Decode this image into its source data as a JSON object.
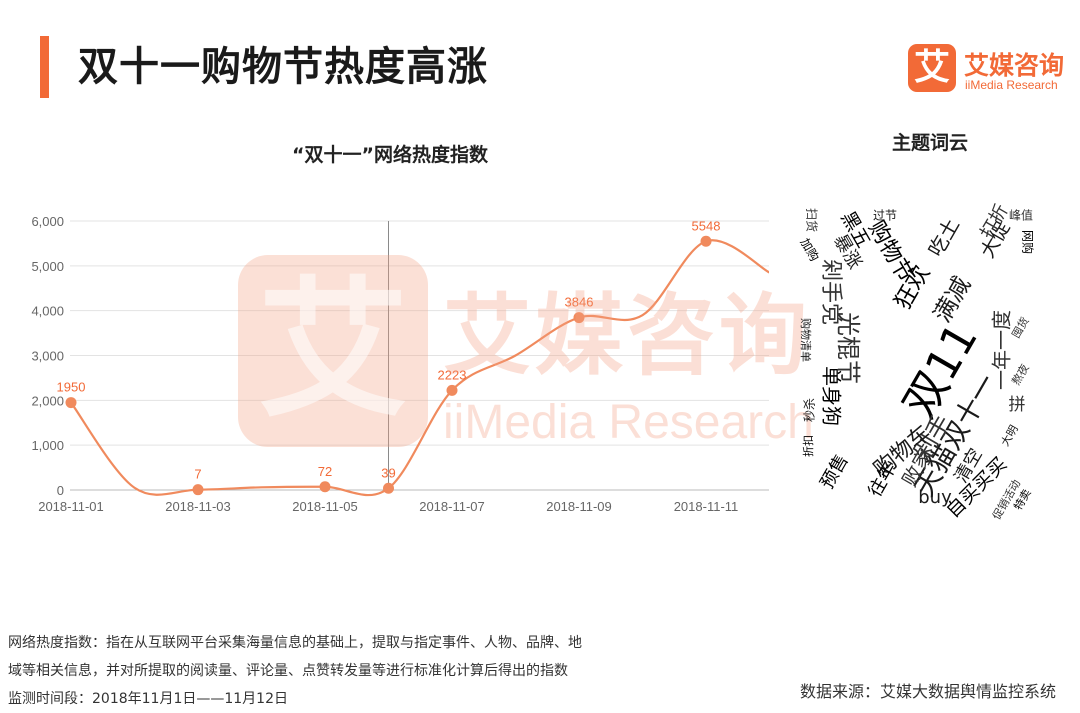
{
  "header": {
    "title": "双十一购物节热度高涨",
    "accent_color": "#f26a37"
  },
  "logo": {
    "mark": "艾",
    "name_cn": "艾媒咨询",
    "name_en": "iiMedia Research"
  },
  "watermark": {
    "mark": "艾",
    "cn": "艾媒咨询",
    "en": "iiMedia Research"
  },
  "chart_data": {
    "type": "line",
    "title": "“双十一”网络热度指数",
    "xlabel": "",
    "ylabel": "",
    "x": [
      "2018-11-01",
      "2018-11-02",
      "2018-11-03",
      "2018-11-04",
      "2018-11-05",
      "2018-11-06",
      "2018-11-07",
      "2018-11-08",
      "2018-11-09",
      "2018-11-10",
      "2018-11-11",
      "2018-11-12"
    ],
    "x_tick_labels": [
      "2018-11-01",
      "2018-11-03",
      "2018-11-05",
      "2018-11-07",
      "2018-11-09",
      "2018-11-11"
    ],
    "series": [
      {
        "values": [
          1950,
          50,
          7,
          60,
          72,
          39,
          2223,
          3000,
          3846,
          3900,
          5548,
          4850
        ],
        "color": "#f08a5d"
      }
    ],
    "labeled_points": [
      {
        "x": "2018-11-01",
        "label": "1950"
      },
      {
        "x": "2018-11-03",
        "label": "7"
      },
      {
        "x": "2018-11-05",
        "label": "72"
      },
      {
        "x": "2018-11-06",
        "label": "39"
      },
      {
        "x": "2018-11-07",
        "label": "2223"
      },
      {
        "x": "2018-11-09",
        "label": "3846"
      },
      {
        "x": "2018-11-11",
        "label": "5548"
      }
    ],
    "marker_line_x": "2018-11-06",
    "ylim": [
      0,
      6000
    ],
    "y_ticks": [
      0,
      1000,
      2000,
      3000,
      4000,
      5000,
      6000
    ],
    "y_tick_labels": [
      "0",
      "1,000",
      "2,000",
      "3,000",
      "4,000",
      "5,000",
      "6,000"
    ],
    "grid": true,
    "legend": "none",
    "label_color": "#f26a37"
  },
  "word_cloud": {
    "title": "主题词云",
    "words": [
      {
        "text": "双11",
        "weight": 5
      },
      {
        "text": "天猫双十一",
        "weight": 4
      },
      {
        "text": "剁手",
        "weight": 4
      },
      {
        "text": "购物节",
        "weight": 3
      },
      {
        "text": "购物车",
        "weight": 3
      },
      {
        "text": "光棍节",
        "weight": 3
      },
      {
        "text": "狂欢",
        "weight": 3
      },
      {
        "text": "满减",
        "weight": 3
      },
      {
        "text": "一年一度",
        "weight": 3
      },
      {
        "text": "自买买买",
        "weight": 3
      },
      {
        "text": "大促",
        "weight": 3
      },
      {
        "text": "剁手党",
        "weight": 2
      },
      {
        "text": "单身狗",
        "weight": 2
      },
      {
        "text": "吃土",
        "weight": 2
      },
      {
        "text": "打折",
        "weight": 2
      },
      {
        "text": "预售",
        "weight": 2
      },
      {
        "text": "清空",
        "weight": 2
      },
      {
        "text": "败家",
        "weight": 2
      },
      {
        "text": "往年",
        "weight": 2
      },
      {
        "text": "buy",
        "weight": 2
      },
      {
        "text": "拼",
        "weight": 2
      },
      {
        "text": "黑五",
        "weight": 2
      },
      {
        "text": "暴涨",
        "weight": 2
      },
      {
        "text": "峰值",
        "weight": 1
      },
      {
        "text": "网购",
        "weight": 1
      },
      {
        "text": "过节",
        "weight": 1
      },
      {
        "text": "扫货",
        "weight": 1
      },
      {
        "text": "加购",
        "weight": 1
      },
      {
        "text": "购物清单",
        "weight": 1
      },
      {
        "text": "促销活动",
        "weight": 1
      },
      {
        "text": "特卖",
        "weight": 1
      },
      {
        "text": "大明",
        "weight": 1
      },
      {
        "text": "囤货",
        "weight": 1
      },
      {
        "text": "折扣",
        "weight": 1
      },
      {
        "text": "秒杀",
        "weight": 1
      },
      {
        "text": "熬夜",
        "weight": 1
      }
    ]
  },
  "footnote": {
    "definition_line1": "网络热度指数：指在从互联网平台采集海量信息的基础上，提取与指定事件、人物、品牌、地",
    "definition_line2": "域等相关信息，并对所提取的阅读量、评论量、点赞转发量等进行标准化计算后得出的指数",
    "period": "监测时间段：2018年11月1日——11月12日",
    "source": "数据来源：艾媒大数据舆情监控系统"
  }
}
